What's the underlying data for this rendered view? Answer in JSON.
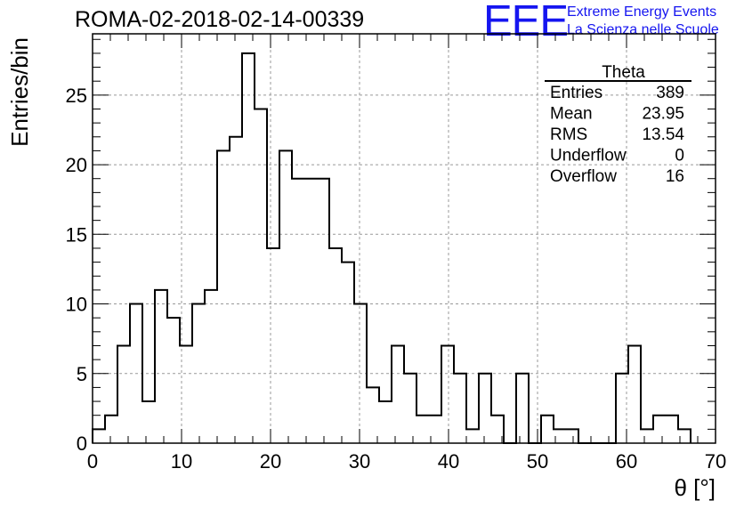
{
  "header": {
    "run_title": "ROMA-02-2018-02-14-00339",
    "logo_text": "EEE",
    "logo_line_1": "Extreme Energy Events",
    "logo_line_2": "La Scienza nelle Scuole",
    "brand_color": "#1515f0"
  },
  "stats_box": {
    "name": "Theta",
    "rows": [
      {
        "label": "Entries",
        "value": "389"
      },
      {
        "label": "Mean",
        "value": "23.95"
      },
      {
        "label": "RMS",
        "value": "13.54"
      },
      {
        "label": "Underflow",
        "value": "0"
      },
      {
        "label": "Overflow",
        "value": "16"
      }
    ]
  },
  "chart_data": {
    "type": "histogram",
    "title": "ROMA-02-2018-02-14-00339",
    "xlabel": "θ [°]",
    "ylabel": "Entries/bin",
    "xlim": [
      0,
      70
    ],
    "ylim": [
      0,
      29.4
    ],
    "x_ticks": [
      0,
      10,
      20,
      30,
      40,
      50,
      60,
      70
    ],
    "y_ticks": [
      0,
      5,
      10,
      15,
      20,
      25
    ],
    "grid": true,
    "bin_width": 1.4,
    "bin_edges_start": 0,
    "values": [
      1,
      2,
      7,
      10,
      3,
      11,
      9,
      7,
      10,
      11,
      21,
      22,
      28,
      24,
      14,
      21,
      19,
      19,
      19,
      14,
      13,
      10,
      4,
      3,
      7,
      5,
      2,
      2,
      7,
      5,
      1,
      5,
      2,
      0,
      5,
      0,
      2,
      1,
      1,
      0,
      0,
      0,
      5,
      7,
      1,
      2,
      2,
      1
    ]
  }
}
